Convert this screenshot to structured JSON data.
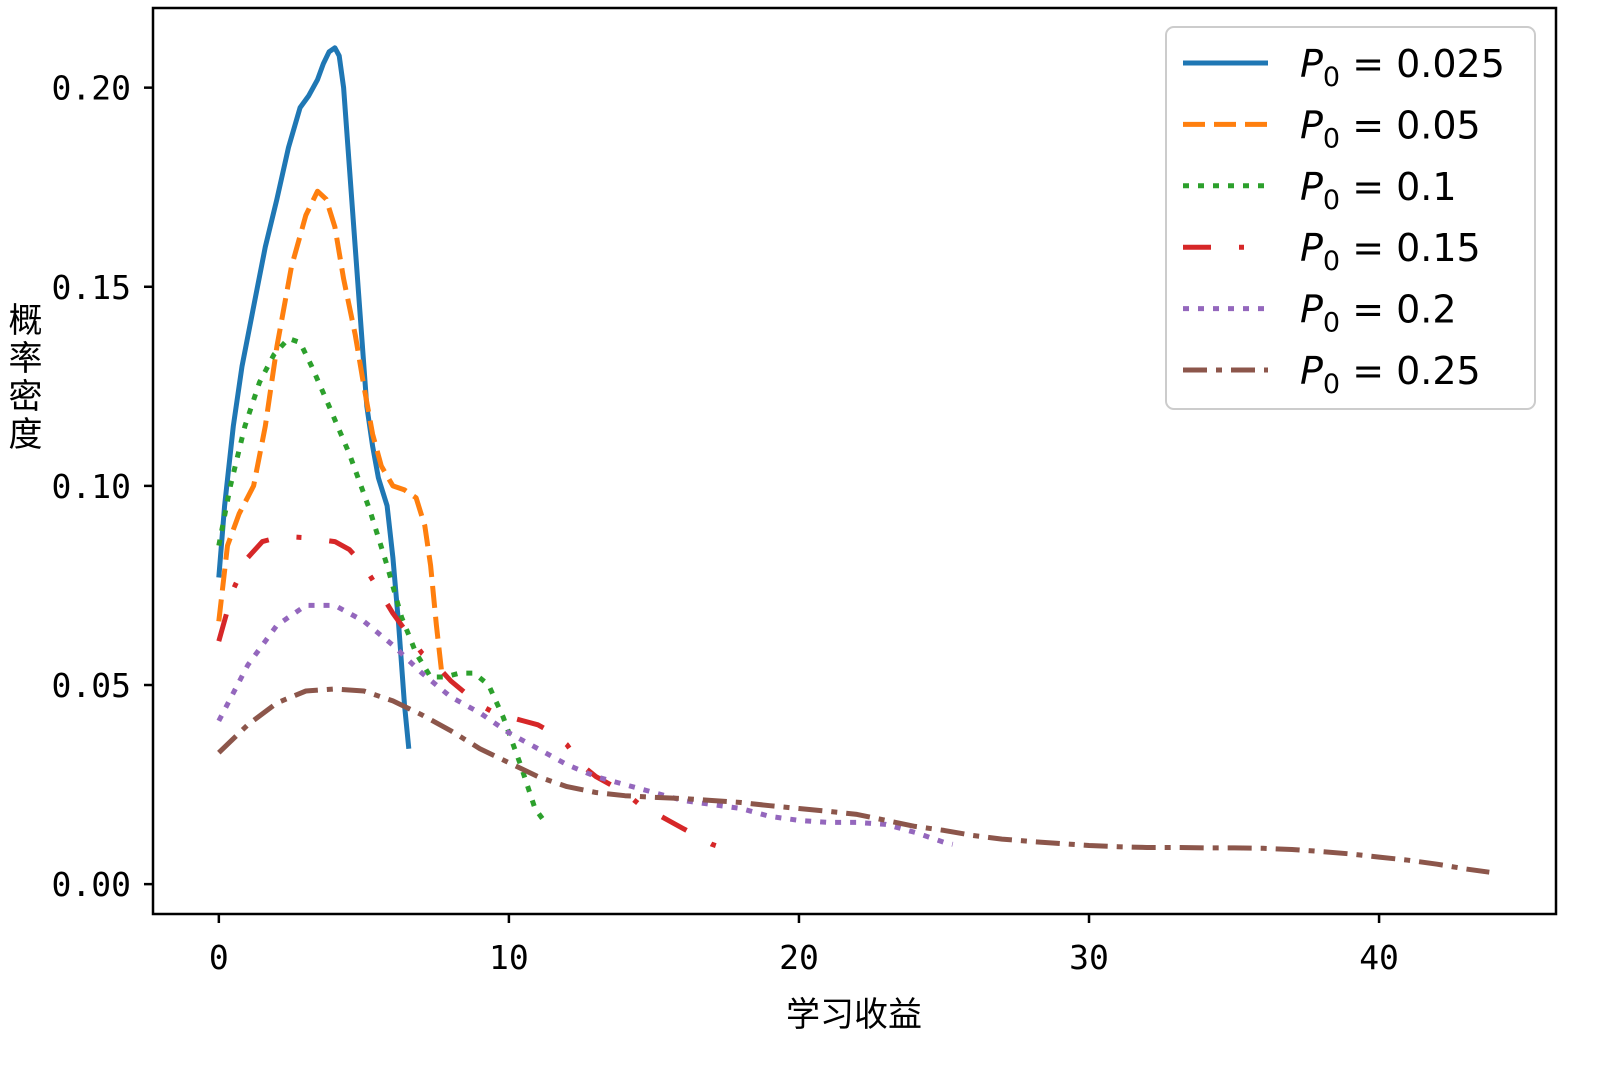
{
  "chart_data": {
    "type": "line",
    "title": "",
    "xlabel": "学习收益",
    "ylabel": "概率密度",
    "xlim": [
      -2.27,
      46.1
    ],
    "ylim": [
      -0.0075,
      0.22
    ],
    "xticks": [
      0,
      10,
      20,
      30,
      40
    ],
    "xtick_labels": [
      "0",
      "10",
      "20",
      "30",
      "40"
    ],
    "yticks": [
      0.0,
      0.05,
      0.1,
      0.15,
      0.2
    ],
    "ytick_labels": [
      "0.00",
      "0.05",
      "0.10",
      "0.15",
      "0.20"
    ],
    "grid": false,
    "legend_position": "top-right",
    "series": [
      {
        "name": "P0 = 0.025",
        "legend_main": "P",
        "legend_sub": "0",
        "legend_rest": " = 0.025",
        "color": "#1f77b4",
        "style": "solid",
        "x": [
          0,
          0.2,
          0.5,
          0.8,
          1.2,
          1.6,
          2.0,
          2.4,
          2.8,
          3.1,
          3.4,
          3.6,
          3.8,
          4.0,
          4.15,
          4.3,
          4.5,
          4.7,
          4.9,
          5.1,
          5.3,
          5.5,
          5.8,
          6.0,
          6.2,
          6.4,
          6.55
        ],
        "y": [
          0.077,
          0.095,
          0.115,
          0.13,
          0.145,
          0.16,
          0.172,
          0.185,
          0.195,
          0.198,
          0.202,
          0.206,
          0.209,
          0.21,
          0.208,
          0.2,
          0.18,
          0.16,
          0.14,
          0.12,
          0.11,
          0.102,
          0.095,
          0.082,
          0.065,
          0.045,
          0.034
        ]
      },
      {
        "name": "P0 = 0.05",
        "legend_main": "P",
        "legend_sub": "0",
        "legend_rest": " = 0.05",
        "color": "#ff7f0e",
        "style": "dashed",
        "x": [
          0,
          0.3,
          0.7,
          1.2,
          1.6,
          2.0,
          2.5,
          3.0,
          3.4,
          3.7,
          4.0,
          4.3,
          4.7,
          5.0,
          5.3,
          5.6,
          6.0,
          6.4,
          6.8,
          7.1,
          7.3,
          7.5,
          7.7
        ],
        "y": [
          0.066,
          0.085,
          0.093,
          0.1,
          0.115,
          0.135,
          0.155,
          0.168,
          0.174,
          0.172,
          0.165,
          0.152,
          0.138,
          0.125,
          0.113,
          0.105,
          0.1,
          0.099,
          0.097,
          0.09,
          0.08,
          0.065,
          0.052
        ]
      },
      {
        "name": "P0 = 0.1",
        "legend_main": "P",
        "legend_sub": "0",
        "legend_rest": " = 0.1",
        "color": "#2ca02c",
        "style": "dotted",
        "x": [
          0,
          0.4,
          0.9,
          1.4,
          1.9,
          2.4,
          2.8,
          3.2,
          3.8,
          4.5,
          5.2,
          5.8,
          6.3,
          6.8,
          7.3,
          7.8,
          8.3,
          8.8,
          9.3,
          9.8,
          10.4,
          10.9,
          11.3
        ],
        "y": [
          0.085,
          0.1,
          0.115,
          0.126,
          0.133,
          0.137,
          0.136,
          0.13,
          0.12,
          0.108,
          0.094,
          0.08,
          0.067,
          0.058,
          0.052,
          0.052,
          0.053,
          0.053,
          0.05,
          0.042,
          0.03,
          0.019,
          0.015
        ]
      },
      {
        "name": "P0 = 0.15",
        "legend_main": "P",
        "legend_sub": "0",
        "legend_rest": " = 0.15",
        "color": "#d62728",
        "style": "longdash",
        "x": [
          0,
          0.5,
          1.0,
          1.5,
          2.0,
          2.5,
          3.0,
          3.5,
          4.0,
          4.5,
          5.0,
          5.5,
          6.0,
          6.5,
          7.0,
          7.5,
          8.0,
          8.5,
          9.0,
          9.5,
          10.0,
          10.5,
          11.0,
          11.5,
          12.0,
          12.5,
          13.0,
          13.5,
          14.0,
          14.5,
          15.0,
          15.5,
          16.0,
          16.5,
          17.0,
          17.5,
          17.8
        ],
        "y": [
          0.061,
          0.074,
          0.082,
          0.086,
          0.087,
          0.0872,
          0.087,
          0.0865,
          0.086,
          0.084,
          0.08,
          0.074,
          0.068,
          0.063,
          0.058,
          0.055,
          0.051,
          0.048,
          0.045,
          0.043,
          0.042,
          0.041,
          0.04,
          0.038,
          0.035,
          0.03,
          0.027,
          0.025,
          0.023,
          0.02,
          0.018,
          0.016,
          0.014,
          0.012,
          0.01,
          0.0088,
          0.0082
        ]
      },
      {
        "name": "P0 = 0.2",
        "legend_main": "P",
        "legend_sub": "0",
        "legend_rest": " = 0.2",
        "color": "#9467bd",
        "style": "dotted",
        "x": [
          0,
          1,
          2,
          3,
          4,
          5,
          6,
          7,
          8,
          9,
          10,
          11,
          12,
          13,
          14,
          15,
          16,
          17,
          18,
          19,
          20,
          21,
          22,
          23,
          24,
          25,
          25.3
        ],
        "y": [
          0.041,
          0.055,
          0.065,
          0.07,
          0.07,
          0.066,
          0.06,
          0.053,
          0.047,
          0.043,
          0.038,
          0.034,
          0.03,
          0.027,
          0.025,
          0.023,
          0.021,
          0.02,
          0.019,
          0.017,
          0.016,
          0.0155,
          0.0155,
          0.015,
          0.013,
          0.0105,
          0.01
        ]
      },
      {
        "name": "P0 = 0.25",
        "legend_main": "P",
        "legend_sub": "0",
        "legend_rest": " = 0.25",
        "color": "#8c564b",
        "style": "dashdot",
        "x": [
          0,
          1,
          2,
          3,
          4,
          5,
          6,
          7,
          8,
          9,
          10,
          11,
          12,
          13,
          14,
          15,
          16,
          17,
          18,
          19,
          20,
          21,
          22,
          23,
          24,
          25,
          26,
          27,
          28,
          29,
          30,
          31,
          32,
          33,
          34,
          35,
          36,
          37,
          38,
          39,
          40,
          41,
          42,
          43,
          43.8
        ],
        "y": [
          0.033,
          0.04,
          0.0455,
          0.0485,
          0.049,
          0.0485,
          0.046,
          0.0425,
          0.0385,
          0.034,
          0.0305,
          0.027,
          0.0245,
          0.023,
          0.0222,
          0.0218,
          0.0215,
          0.021,
          0.0205,
          0.0197,
          0.019,
          0.0183,
          0.0175,
          0.016,
          0.0145,
          0.0135,
          0.0122,
          0.0113,
          0.0107,
          0.0102,
          0.0097,
          0.0094,
          0.0092,
          0.0092,
          0.0091,
          0.0091,
          0.009,
          0.0087,
          0.0082,
          0.0076,
          0.0068,
          0.006,
          0.005,
          0.0038,
          0.003
        ]
      }
    ]
  }
}
